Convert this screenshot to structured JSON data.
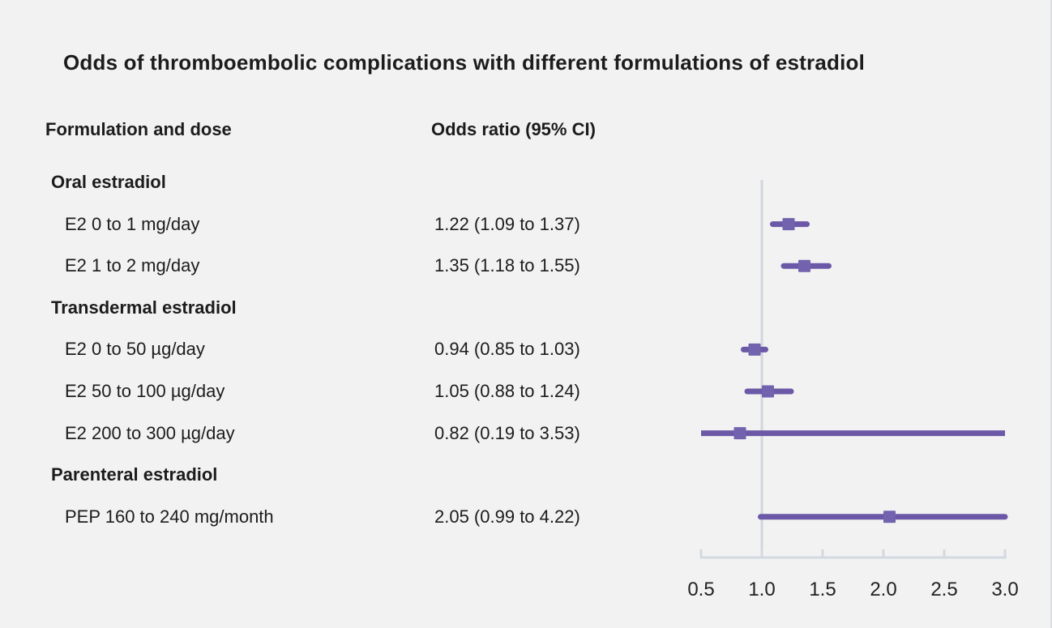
{
  "title": "Odds of thromboemnbolic complications with different formulations of estradiol",
  "title_text": "Odds of thromboembolic complications with different formulations of estradiol",
  "columns": {
    "formulation": "Formulation and dose",
    "odds": "Odds ratio (95% CI)"
  },
  "colors": {
    "background": "#f2f2f2",
    "text": "#1c1c1c",
    "ci_line": "#6b59a7",
    "marker": "#7163ad",
    "reference_line": "#d0d6df",
    "axis_line": "#d3d9e0",
    "tick_label": "#222222"
  },
  "chart_data": {
    "type": "forest",
    "title": "Odds of thromboembolic complications with different formulations of estradiol",
    "xlabel": "Odds ratio",
    "xlim": [
      0.5,
      3.0
    ],
    "reference_line": 1.0,
    "ticks": [
      0.5,
      1.0,
      1.5,
      2.0,
      2.5,
      3.0
    ],
    "tick_labels": [
      "0.5",
      "1.0",
      "1.5",
      "2.0",
      "2.5",
      "3.0"
    ],
    "legend": "none",
    "grid": "off",
    "rows": [
      {
        "kind": "group",
        "label": "Oral estradiol"
      },
      {
        "kind": "item",
        "label": "E2 0 to 1 mg/day",
        "or": 1.22,
        "lo": 1.09,
        "hi": 1.37,
        "ci_label": "1.22 (1.09 to 1.37)"
      },
      {
        "kind": "item",
        "label": "E2 1 to 2 mg/day",
        "or": 1.35,
        "lo": 1.18,
        "hi": 1.55,
        "ci_label": "1.35 (1.18 to 1.55)"
      },
      {
        "kind": "group",
        "label": "Transdermal estradiol"
      },
      {
        "kind": "item",
        "label": "E2 0 to 50 µg/day",
        "or": 0.94,
        "lo": 0.85,
        "hi": 1.03,
        "ci_label": "0.94 (0.85 to 1.03)"
      },
      {
        "kind": "item",
        "label": "E2 50 to 100 µg/day",
        "or": 1.05,
        "lo": 0.88,
        "hi": 1.24,
        "ci_label": "1.05 (0.88 to 1.24)"
      },
      {
        "kind": "item",
        "label": "E2 200 to 300 µg/day",
        "or": 0.82,
        "lo": 0.19,
        "hi": 3.53,
        "ci_label": "0.82 (0.19 to 3.53)"
      },
      {
        "kind": "group",
        "label": "Parenteral estradiol"
      },
      {
        "kind": "item",
        "label": "PEP 160 to 240 mg/month",
        "or": 2.05,
        "lo": 0.99,
        "hi": 4.22,
        "ci_label": "2.05 (0.99 to 4.22)"
      }
    ]
  }
}
